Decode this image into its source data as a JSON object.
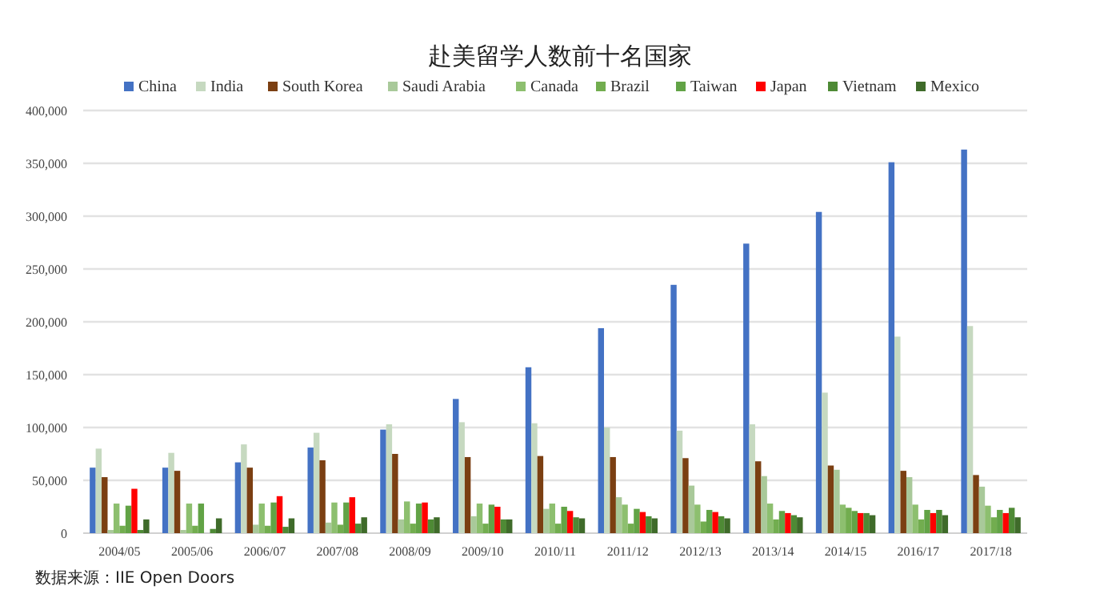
{
  "chart_data": {
    "type": "bar",
    "title": "赴美留学人数前十名国家",
    "annotations": [
      "数据来源：IIE Open Doors"
    ],
    "categories": [
      "2004/05",
      "2005/06",
      "2006/07",
      "2007/08",
      "2008/09",
      "2009/10",
      "2010/11",
      "2011/12",
      "2012/13",
      "2013/14",
      "2014/15",
      "2016/17",
      "2017/18"
    ],
    "series": [
      {
        "name": "China",
        "color": "#4472c4",
        "values": [
          62000,
          62000,
          67000,
          81000,
          98000,
          127000,
          157000,
          194000,
          235000,
          274000,
          304000,
          351000,
          363000
        ]
      },
      {
        "name": "India",
        "color": "#c6d9c0",
        "values": [
          80000,
          76000,
          84000,
          95000,
          103000,
          105000,
          104000,
          100000,
          97000,
          103000,
          133000,
          186000,
          196000
        ]
      },
      {
        "name": "South Korea",
        "color": "#7b3f12",
        "values": [
          53000,
          59000,
          62000,
          69000,
          75000,
          72000,
          73000,
          72000,
          71000,
          68000,
          64000,
          59000,
          55000
        ]
      },
      {
        "name": "Saudi Arabia",
        "color": "#a9c99a",
        "values": [
          3000,
          3000,
          8000,
          10000,
          13000,
          16000,
          23000,
          34000,
          45000,
          54000,
          60000,
          53000,
          44000
        ]
      },
      {
        "name": "Canada",
        "color": "#8dbf6f",
        "values": [
          28000,
          28000,
          28000,
          29000,
          30000,
          28000,
          28000,
          27000,
          27000,
          28000,
          27000,
          27000,
          26000
        ]
      },
      {
        "name": "Brazil",
        "color": "#72ad4f",
        "values": [
          7000,
          7000,
          7000,
          8000,
          9000,
          9000,
          9000,
          9000,
          11000,
          13000,
          24000,
          13000,
          15000
        ]
      },
      {
        "name": "Taiwan",
        "color": "#62a346",
        "values": [
          26000,
          28000,
          29000,
          29000,
          28000,
          27000,
          25000,
          23000,
          22000,
          21000,
          21000,
          22000,
          22000
        ]
      },
      {
        "name": "Japan",
        "color": "#ff0000",
        "values": [
          42000,
          null,
          35000,
          34000,
          29000,
          25000,
          21000,
          20000,
          20000,
          19000,
          19000,
          19000,
          19000
        ]
      },
      {
        "name": "Vietnam",
        "color": "#4e8a35",
        "values": [
          3000,
          4000,
          6000,
          9000,
          13000,
          13000,
          15000,
          16000,
          16000,
          17000,
          19000,
          22000,
          24000
        ]
      },
      {
        "name": "Mexico",
        "color": "#3f6b2a",
        "values": [
          13000,
          14000,
          14000,
          15000,
          15000,
          13000,
          14000,
          14000,
          14000,
          15000,
          17000,
          17000,
          15000
        ]
      }
    ],
    "ylim": [
      0,
      400000
    ],
    "yticks": [
      {
        "value": 0,
        "label": "0"
      },
      {
        "value": 50000,
        "label": "50,000"
      },
      {
        "value": 100000,
        "label": "100,000"
      },
      {
        "value": 150000,
        "label": "150,000"
      },
      {
        "value": 200000,
        "label": "200,000"
      },
      {
        "value": 250000,
        "label": "250,000"
      },
      {
        "value": 300000,
        "label": "300,000"
      },
      {
        "value": 350000,
        "label": "350,000"
      },
      {
        "value": 400000,
        "label": "400,000"
      }
    ],
    "grid": "y",
    "legend": "top"
  }
}
